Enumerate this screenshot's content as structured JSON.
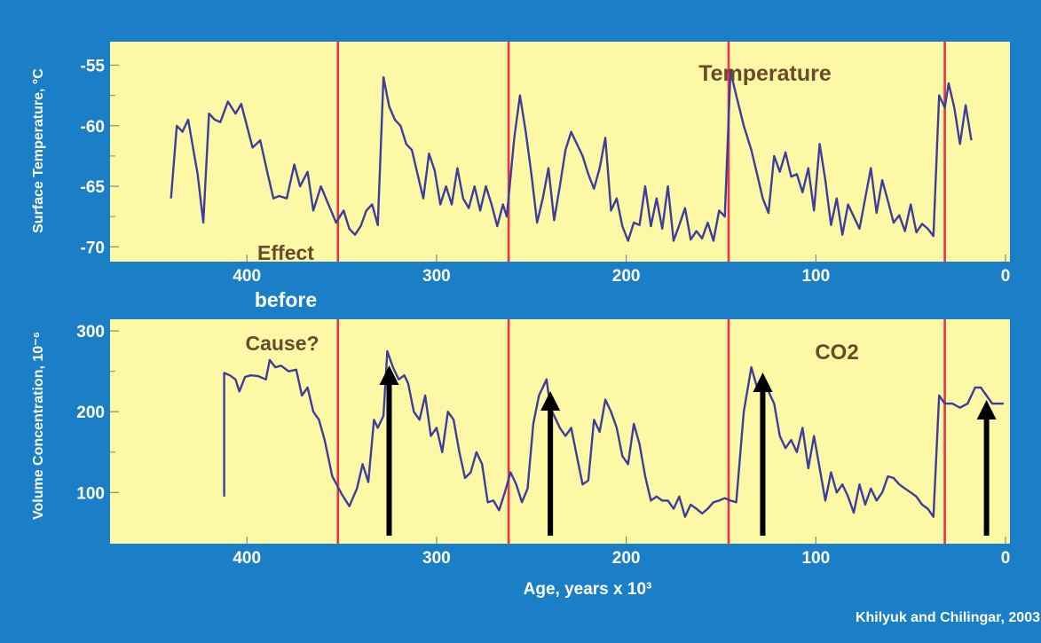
{
  "colors": {
    "background": "#1a7fc6",
    "panel": "#fdf8a6",
    "line": "#3d3d9e",
    "marker": "#e8334a",
    "arrow": "#000000",
    "annotation": "#6b4a2a",
    "tick_text": "#ffffff"
  },
  "labels": {
    "effect": "Effect",
    "before": "before",
    "cause": "Cause?",
    "xlabel": "Age, years x 10³",
    "credit": "Khilyuk and Chilingar, 2003"
  },
  "chart_data": [
    {
      "type": "line",
      "name": "temperature",
      "annotation": "Temperature",
      "ylabel": "Surface Temperature, °C",
      "xlim": [
        460,
        0
      ],
      "ylim": [
        -71,
        -53.5
      ],
      "xticks": [
        400,
        300,
        200,
        100,
        0
      ],
      "yticks": [
        -55,
        -60,
        -65,
        -70
      ],
      "markers_x": [
        352,
        262,
        146,
        32
      ],
      "series": [
        {
          "x": [
            440,
            437,
            434,
            431,
            426,
            423,
            420,
            417,
            414,
            410,
            406,
            403,
            397,
            393,
            389,
            386,
            383,
            379,
            375,
            372,
            368,
            365,
            361,
            357,
            353,
            349,
            346,
            343,
            340,
            337,
            334,
            331,
            328,
            325,
            322,
            319,
            316,
            313,
            310,
            307,
            304,
            301,
            298,
            295,
            292,
            289,
            286,
            283,
            280,
            277,
            274,
            271,
            268,
            265,
            263,
            259,
            256,
            253,
            250,
            247,
            244,
            241,
            238,
            235,
            232,
            229,
            226,
            223,
            220,
            217,
            214,
            211,
            208,
            205,
            202,
            199,
            196,
            193,
            190,
            187,
            184,
            181,
            178,
            175,
            172,
            169,
            166,
            163,
            160,
            157,
            154,
            151,
            148,
            145,
            142,
            138,
            134,
            131,
            128,
            125,
            122,
            119,
            116,
            113,
            110,
            107,
            104,
            101,
            98,
            95,
            92,
            89,
            86,
            83,
            80,
            77,
            74,
            71,
            68,
            65,
            62,
            59,
            56,
            53,
            50,
            47,
            44,
            41,
            38,
            35,
            32,
            30,
            27,
            24,
            21,
            18
          ],
          "y": [
            -66,
            -60,
            -60.5,
            -59.5,
            -64,
            -68,
            -59,
            -59.5,
            -59.7,
            -58,
            -59,
            -58.2,
            -61.8,
            -61.2,
            -64,
            -66,
            -65.8,
            -66,
            -63.2,
            -65,
            -63.8,
            -67,
            -65,
            -66.5,
            -68,
            -67,
            -68.5,
            -69,
            -68.3,
            -67,
            -66.5,
            -68.2,
            -56,
            -58.4,
            -59.5,
            -60,
            -61.5,
            -62,
            -64,
            -66,
            -62.3,
            -63.7,
            -66.5,
            -65,
            -66.5,
            -63.5,
            -66,
            -66.8,
            -65,
            -67,
            -65,
            -66.5,
            -68.3,
            -66.5,
            -67.5,
            -61,
            -57.5,
            -60.5,
            -64,
            -68,
            -66,
            -63.5,
            -67.8,
            -65,
            -62,
            -60.5,
            -61.5,
            -62.5,
            -64,
            -65.2,
            -63.5,
            -61,
            -67,
            -66,
            -68.3,
            -69.5,
            -68,
            -68.2,
            -65,
            -68.3,
            -66,
            -68.5,
            -65,
            -69.5,
            -68.2,
            -66.8,
            -69.4,
            -68.7,
            -69.3,
            -68,
            -69.5,
            -67,
            -67.5,
            -55.5,
            -57.5,
            -60,
            -62,
            -64,
            -66,
            -67.2,
            -62.5,
            -63.8,
            -62.2,
            -64.2,
            -64,
            -65.5,
            -63.5,
            -67,
            -61.5,
            -64.5,
            -68.2,
            -66,
            -69,
            -66.5,
            -67.5,
            -68.5,
            -66,
            -63.5,
            -67.2,
            -64.5,
            -66.2,
            -68,
            -67.4,
            -68.7,
            -66.5,
            -68.8,
            -68.1,
            -68.5,
            -69.1,
            -57.5,
            -58.5,
            -56.5,
            -58.5,
            -61.5,
            -58.3,
            -61.2
          ]
        }
      ]
    },
    {
      "type": "line",
      "name": "co2",
      "annotation": "CO2",
      "ylabel": "Volume Concentration, 10⁻⁶",
      "xlim": [
        460,
        0
      ],
      "ylim": [
        40,
        310
      ],
      "xticks": [
        400,
        300,
        200,
        100,
        0
      ],
      "yticks": [
        300,
        200,
        100
      ],
      "markers_x": [
        352,
        262,
        146,
        32
      ],
      "arrows_x": [
        325,
        240,
        128,
        10
      ],
      "series": [
        {
          "x": [
            412,
            412,
            409,
            406,
            404,
            401,
            398,
            394,
            390,
            388,
            385,
            382,
            378,
            374,
            371,
            368,
            365,
            362,
            359,
            355,
            350,
            346,
            342,
            339,
            336,
            333,
            331,
            328,
            326,
            323,
            320,
            317,
            315,
            312,
            309,
            306,
            303,
            300,
            297,
            294,
            291,
            288,
            285,
            282,
            279,
            276,
            273,
            270,
            267,
            264,
            261,
            258,
            255,
            252,
            249,
            246,
            242,
            240,
            238,
            235,
            232,
            229,
            226,
            223,
            220,
            217,
            214,
            211,
            208,
            205,
            202,
            199,
            196,
            193,
            190,
            187,
            184,
            181,
            178,
            175,
            172,
            169,
            166,
            163,
            160,
            157,
            154,
            151,
            148,
            145,
            142,
            138,
            134,
            131,
            128,
            125,
            122,
            119,
            116,
            113,
            110,
            107,
            104,
            101,
            98,
            95,
            92,
            89,
            86,
            83,
            80,
            77,
            74,
            71,
            68,
            65,
            62,
            59,
            56,
            53,
            50,
            47,
            44,
            41,
            38,
            35,
            32,
            28,
            24,
            20,
            16,
            13,
            10,
            7,
            4,
            1
          ],
          "y": [
            95,
            248,
            245,
            240,
            225,
            243,
            245,
            244,
            240,
            264,
            255,
            257,
            250,
            252,
            220,
            230,
            200,
            190,
            165,
            120,
            98,
            83,
            105,
            135,
            113,
            190,
            180,
            195,
            275,
            255,
            240,
            245,
            235,
            200,
            190,
            220,
            170,
            180,
            150,
            200,
            190,
            150,
            118,
            125,
            150,
            135,
            88,
            90,
            78,
            100,
            125,
            110,
            88,
            105,
            185,
            220,
            240,
            205,
            195,
            180,
            170,
            180,
            145,
            110,
            115,
            190,
            175,
            215,
            200,
            180,
            145,
            135,
            185,
            160,
            120,
            90,
            95,
            90,
            90,
            80,
            95,
            70,
            85,
            80,
            74,
            80,
            88,
            90,
            93,
            90,
            88,
            200,
            255,
            230,
            240,
            225,
            210,
            170,
            155,
            165,
            150,
            180,
            130,
            170,
            130,
            90,
            125,
            100,
            110,
            95,
            75,
            110,
            85,
            105,
            90,
            100,
            120,
            118,
            110,
            105,
            100,
            95,
            85,
            80,
            70,
            220,
            210,
            210,
            205,
            210,
            230,
            230,
            220,
            210,
            210,
            210
          ]
        }
      ]
    }
  ]
}
